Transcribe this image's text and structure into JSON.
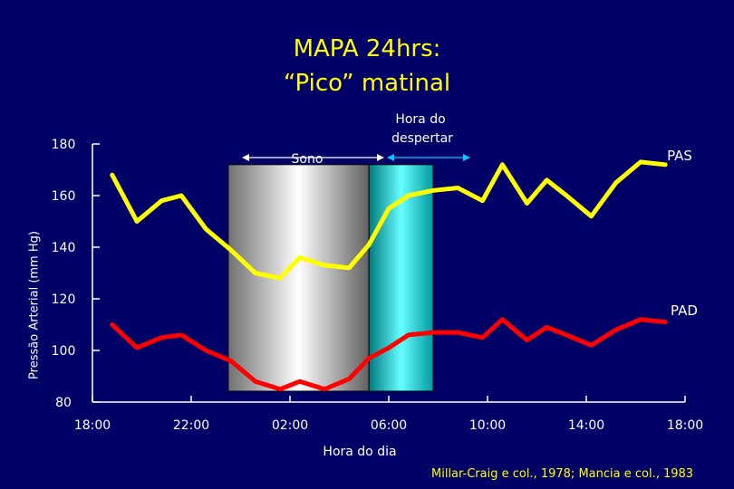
{
  "title_line1": "MAPA 24hrs:",
  "title_line2": "“Pico” matinal",
  "source": "Millar-Craig e col., 1978; Mancia e col., 1983",
  "chart_data": {
    "type": "line",
    "xlabel": "Hora do dia",
    "ylabel": "Pressão Arterial (mm Hg)",
    "x_ticks": [
      "18:00",
      "22:00",
      "02:00",
      "06:00",
      "10:00",
      "14:00",
      "18:00"
    ],
    "y_ticks": [
      80,
      100,
      120,
      140,
      160,
      180
    ],
    "ylim": [
      80,
      180
    ],
    "x_unit": "hours since 18:00",
    "xlim": [
      0,
      24
    ],
    "series": [
      {
        "name": "PAS",
        "color": "#ffff00",
        "x": [
          0.8,
          1.8,
          2.8,
          3.6,
          4.6,
          5.6,
          6.6,
          7.6,
          8.4,
          9.4,
          10.4,
          11.2,
          12,
          12.8,
          13.8,
          14.8,
          15.8,
          16.6,
          17.6,
          18.4,
          19.2,
          20.2,
          21.2,
          22.2,
          23.2
        ],
        "values": [
          168,
          150,
          158,
          160,
          147,
          139,
          130,
          128,
          136,
          133,
          132,
          141,
          155,
          160,
          162,
          163,
          158,
          172,
          157,
          166,
          160,
          152,
          165,
          173,
          172
        ]
      },
      {
        "name": "PAD",
        "color": "#ff0000",
        "x": [
          0.8,
          1.8,
          2.8,
          3.6,
          4.6,
          5.6,
          6.6,
          7.6,
          8.4,
          9.4,
          10.4,
          11.2,
          12,
          12.8,
          13.8,
          14.8,
          15.8,
          16.6,
          17.6,
          18.4,
          19.2,
          20.2,
          21.2,
          22.2,
          23.2
        ],
        "values": [
          110,
          101,
          105,
          106,
          100,
          96,
          88,
          85,
          88,
          85,
          89,
          97,
          101,
          106,
          107,
          107,
          105,
          112,
          104,
          109,
          106,
          102,
          108,
          112,
          111
        ]
      }
    ],
    "bands": [
      {
        "name": "Sono",
        "x_from": 5.5,
        "x_to": 11.2,
        "style": "gray-gradient"
      },
      {
        "name": "Hora do despertar",
        "x_from": 11.2,
        "x_to": 13.8,
        "style": "cyan-gradient"
      }
    ],
    "annotations": {
      "sleep_label": "Sono",
      "wake_label_line1": "Hora do",
      "wake_label_line2": "despertar",
      "pas_label": "PAS",
      "pad_label": "PAD"
    },
    "colors": {
      "background": "#000066",
      "axis": "#ffffff",
      "title": "#ffff00",
      "wake_arrow": "#00ccff"
    }
  }
}
